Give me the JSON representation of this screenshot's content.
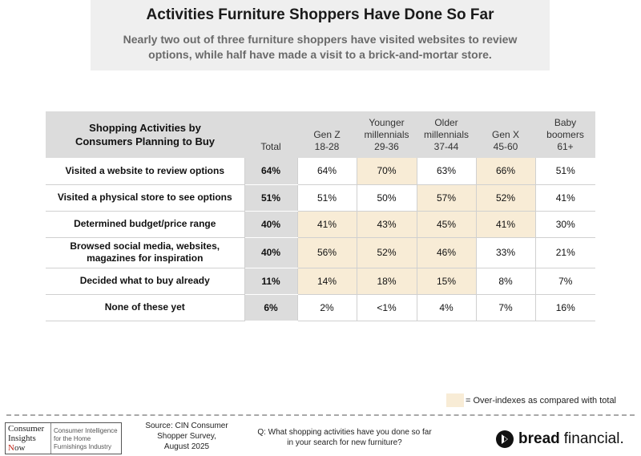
{
  "header": {
    "title": "Activities Furniture Shoppers Have Done So Far",
    "subtitle_line1": "Nearly two out of three furniture shoppers have visited websites to review",
    "subtitle_line2": "options, while half have made a visit to a brick-and-mortar store."
  },
  "chart_data": {
    "type": "table",
    "row_header": [
      "Shopping Activities by",
      "Consumers Planning to Buy"
    ],
    "columns": [
      {
        "lines": [
          "Total"
        ]
      },
      {
        "lines": [
          "Gen Z",
          "18-28"
        ]
      },
      {
        "lines": [
          "Younger",
          "millennials",
          "29-36"
        ]
      },
      {
        "lines": [
          "Older",
          "millennials",
          "37-44"
        ]
      },
      {
        "lines": [
          "Gen X",
          "45-60"
        ]
      },
      {
        "lines": [
          "Baby",
          "boomers",
          "61+"
        ]
      }
    ],
    "rows": [
      {
        "label": [
          "Visited a website to review options"
        ],
        "values": [
          "64%",
          "64%",
          "70%",
          "63%",
          "66%",
          "51%"
        ],
        "over_index": [
          false,
          false,
          true,
          false,
          true,
          false
        ]
      },
      {
        "label": [
          "Visited a physical store to see options"
        ],
        "values": [
          "51%",
          "51%",
          "50%",
          "57%",
          "52%",
          "41%"
        ],
        "over_index": [
          false,
          false,
          false,
          true,
          true,
          false
        ]
      },
      {
        "label": [
          "Determined budget/price range"
        ],
        "values": [
          "40%",
          "41%",
          "43%",
          "45%",
          "41%",
          "30%"
        ],
        "over_index": [
          false,
          true,
          true,
          true,
          true,
          false
        ]
      },
      {
        "label": [
          "Browsed social media, websites,",
          "magazines for inspiration"
        ],
        "values": [
          "40%",
          "56%",
          "52%",
          "46%",
          "33%",
          "21%"
        ],
        "over_index": [
          false,
          true,
          true,
          true,
          false,
          false
        ]
      },
      {
        "label": [
          "Decided what to buy already"
        ],
        "values": [
          "11%",
          "14%",
          "18%",
          "15%",
          "8%",
          "7%"
        ],
        "over_index": [
          false,
          true,
          true,
          true,
          false,
          false
        ]
      },
      {
        "label": [
          "None of these yet"
        ],
        "values": [
          "6%",
          "2%",
          "<1%",
          "4%",
          "7%",
          "16%"
        ],
        "over_index": [
          false,
          false,
          false,
          false,
          false,
          false
        ]
      }
    ],
    "highlight_color": "#f8ecd6",
    "total_column_color": "#dcdcdc"
  },
  "legend": {
    "text": "= Over-indexes as compared with total"
  },
  "footer": {
    "logo_word": [
      "Consumer",
      "Insights",
      "N",
      "ow"
    ],
    "logo_tagline": [
      "Consumer Intelligence",
      "for the Home",
      "Furnishings Industry"
    ],
    "source": [
      "Source: CIN Consumer",
      "Shopper Survey,",
      "August 2025"
    ],
    "question": [
      "Q: What shopping activities have you done so far",
      "in your search for new furniture?"
    ],
    "brand_bold": "bread",
    "brand_light": "financial."
  }
}
